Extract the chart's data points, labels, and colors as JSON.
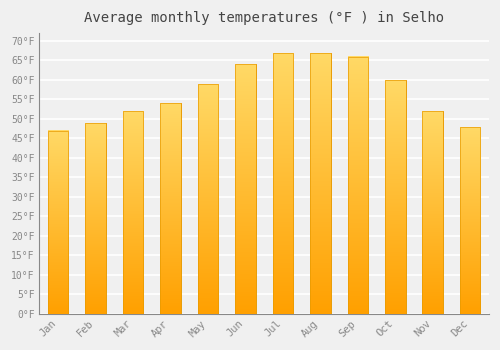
{
  "months": [
    "Jan",
    "Feb",
    "Mar",
    "Apr",
    "May",
    "Jun",
    "Jul",
    "Aug",
    "Sep",
    "Oct",
    "Nov",
    "Dec"
  ],
  "values": [
    47,
    49,
    52,
    54,
    59,
    64,
    67,
    67,
    66,
    60,
    52,
    48
  ],
  "bar_color_top": "#FFD966",
  "bar_color_bottom": "#FFA500",
  "bar_edge_color": "#E89A00",
  "title": "Average monthly temperatures (°F ) in Selho",
  "title_fontsize": 10,
  "ylabel_ticks": [
    0,
    5,
    10,
    15,
    20,
    25,
    30,
    35,
    40,
    45,
    50,
    55,
    60,
    65,
    70
  ],
  "ylim": [
    0,
    72
  ],
  "background_color": "#f0f0f0",
  "plot_bg_color": "#f0f0f0",
  "grid_color": "#ffffff",
  "tick_label_color": "#888888",
  "title_color": "#444444",
  "bar_width": 0.55
}
